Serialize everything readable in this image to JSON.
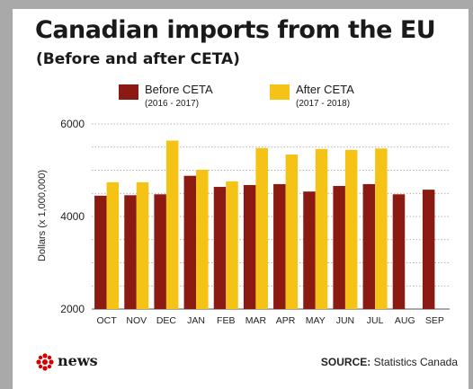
{
  "header": {
    "title": "Canadian imports from the EU",
    "subtitle": "(Before and after CETA)"
  },
  "legend": [
    {
      "name": "Before CETA",
      "range": "(2016 - 2017)",
      "color": "#8b1a12"
    },
    {
      "name": "After CETA",
      "range": "(2017 - 2018)",
      "color": "#f5c216"
    }
  ],
  "footer": {
    "brand": "news",
    "source_label": "SOURCE:",
    "source_value": "Statistics Canada"
  },
  "chart_data": {
    "type": "bar",
    "ylabel": "Dollars (x 1,000,000)",
    "ylim": [
      2000,
      6000
    ],
    "yticks": [
      2000,
      4000,
      6000
    ],
    "grid": true,
    "legend_position": "top",
    "categories": [
      "OCT",
      "NOV",
      "DEC",
      "JAN",
      "FEB",
      "MAR",
      "APR",
      "MAY",
      "JUN",
      "JUL",
      "AUG",
      "SEP"
    ],
    "series": [
      {
        "name": "Before CETA",
        "color": "#8b1a12",
        "values": [
          4450,
          4460,
          4480,
          4880,
          4640,
          4680,
          4700,
          4540,
          4660,
          4700,
          4480,
          4580
        ]
      },
      {
        "name": "After CETA",
        "color": "#f5c216",
        "values": [
          4740,
          4740,
          5640,
          5010,
          4760,
          5480,
          5340,
          5460,
          5440,
          5470,
          null,
          null
        ]
      }
    ]
  }
}
